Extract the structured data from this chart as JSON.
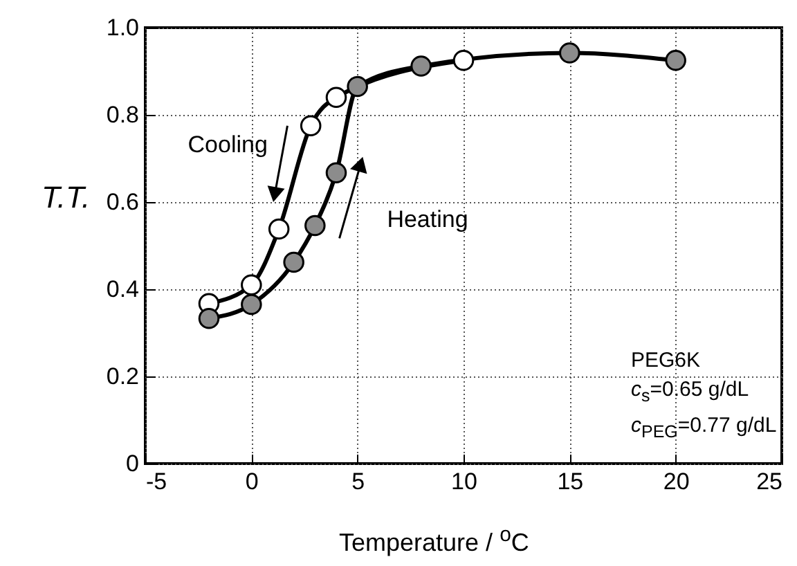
{
  "chart_data": {
    "type": "line",
    "xlabel": "Temperature / $^{o}$C",
    "ylabel": "T.T.",
    "xlim": [
      -5,
      25
    ],
    "xticks": [
      -5,
      0,
      5,
      10,
      15,
      20,
      25
    ],
    "ylim": [
      0,
      1
    ],
    "yticks": [
      0,
      0.2,
      0.4,
      0.6,
      0.8,
      {
        "value": 1,
        "label": "1.0"
      }
    ],
    "grid": true,
    "marker": "circle",
    "line_style": "solid",
    "series": [
      {
        "name": "Cooling",
        "color": "#ffffff",
        "x": [
          -2,
          0,
          1.3,
          2.8,
          4,
          10
        ],
        "values": [
          0.367,
          0.41,
          0.538,
          0.775,
          0.84,
          0.925
        ]
      },
      {
        "name": "Heating",
        "color": "#8c8c8c",
        "x": [
          -2,
          0,
          2,
          3,
          4,
          5,
          8,
          15,
          20
        ],
        "values": [
          0.333,
          0.365,
          0.462,
          0.546,
          0.667,
          0.865,
          0.912,
          0.942,
          0.925
        ]
      }
    ],
    "annotations": [
      "PEG6K",
      "c$_{s}$=0.65 g/dL",
      "c$_{PEG}$=0.77 g/dL"
    ]
  }
}
